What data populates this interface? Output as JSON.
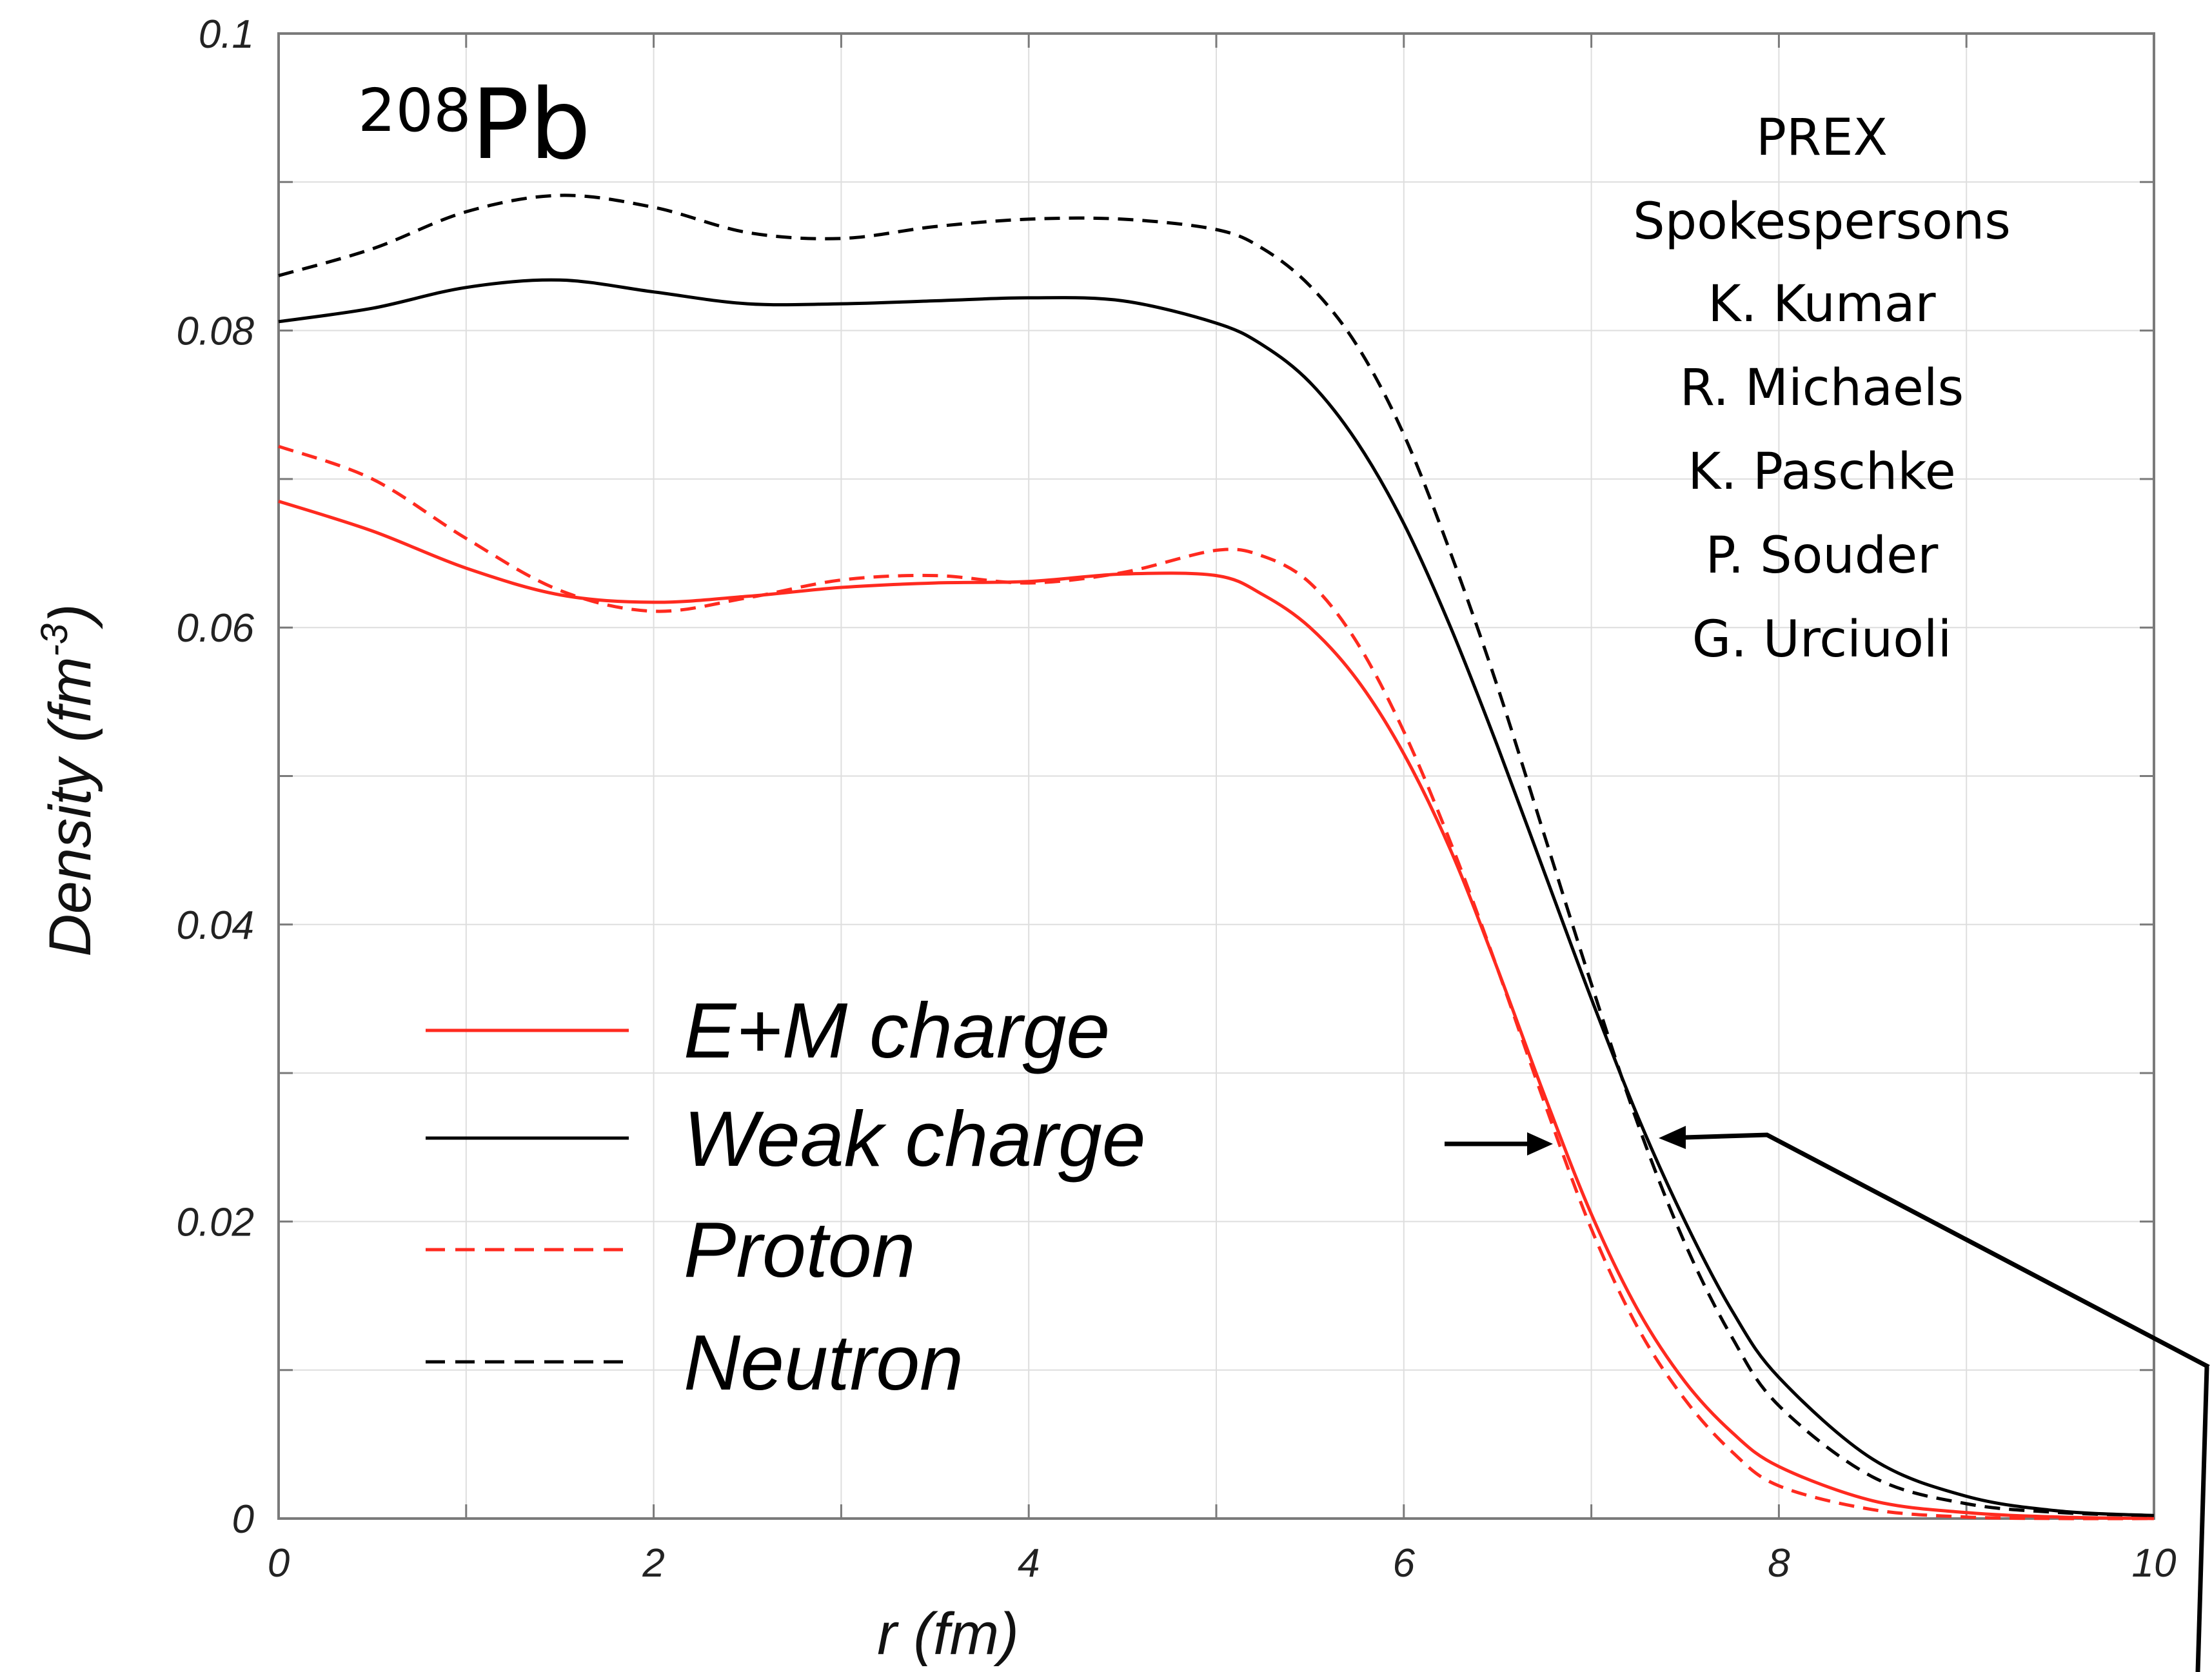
{
  "chart_data": {
    "type": "line",
    "xlabel": "r (fm)",
    "ylabel_main": "Density (fm",
    "ylabel_exp": "-3",
    "ylabel_tail": ")",
    "xlim": [
      0,
      10
    ],
    "ylim": [
      0,
      0.1
    ],
    "x_ticks": [
      "0",
      "2",
      "4",
      "6",
      "8",
      "10"
    ],
    "y_ticks": [
      "0",
      "0.02",
      "0.04",
      "0.06",
      "0.08",
      "0.1"
    ],
    "x_tick_values": [
      0,
      2,
      4,
      6,
      8,
      10
    ],
    "y_tick_values": [
      0,
      0.02,
      0.04,
      0.06,
      0.08,
      0.1
    ],
    "grid": true,
    "legend_position": "lower-left",
    "nucleus_label": {
      "mass": "208",
      "symbol": "Pb"
    },
    "credits": [
      "PREX",
      "Spokespersons",
      "K. Kumar",
      "R. Michaels",
      "K. Paschke",
      "P. Souder",
      "G. Urciuoli"
    ],
    "series": [
      {
        "name": "E+M charge",
        "color": "#ff2a1f",
        "dash": "solid",
        "x": [
          0,
          0.5,
          1,
          1.5,
          2,
          2.5,
          3,
          3.5,
          4,
          4.5,
          5,
          5.25,
          5.5,
          5.75,
          6,
          6.25,
          6.5,
          6.75,
          7,
          7.25,
          7.5,
          7.75,
          8,
          8.5,
          9,
          9.5,
          10
        ],
        "y": [
          0.0685,
          0.0665,
          0.064,
          0.0622,
          0.0617,
          0.0621,
          0.0627,
          0.063,
          0.0631,
          0.0636,
          0.0635,
          0.0622,
          0.06,
          0.0565,
          0.0515,
          0.045,
          0.037,
          0.0285,
          0.0205,
          0.014,
          0.0092,
          0.0058,
          0.0035,
          0.0012,
          0.0004,
          0.0001,
          0.0
        ]
      },
      {
        "name": "Weak charge",
        "color": "#000000",
        "dash": "solid",
        "x": [
          0,
          0.5,
          1,
          1.5,
          2,
          2.5,
          3,
          3.5,
          4,
          4.5,
          5,
          5.25,
          5.5,
          5.75,
          6,
          6.25,
          6.5,
          6.75,
          7,
          7.25,
          7.5,
          7.75,
          8,
          8.5,
          9,
          9.5,
          10
        ],
        "y": [
          0.0806,
          0.0815,
          0.0829,
          0.0834,
          0.0826,
          0.0818,
          0.0818,
          0.082,
          0.0822,
          0.082,
          0.0805,
          0.079,
          0.0765,
          0.0725,
          0.067,
          0.06,
          0.052,
          0.0435,
          0.035,
          0.027,
          0.02,
          0.014,
          0.0095,
          0.004,
          0.0015,
          0.0005,
          0.0002
        ]
      },
      {
        "name": "Proton",
        "color": "#ff2a1f",
        "dash": "dashed",
        "x": [
          0,
          0.5,
          1,
          1.5,
          2,
          2.5,
          3,
          3.5,
          4,
          4.5,
          5,
          5.25,
          5.5,
          5.75,
          6,
          6.25,
          6.5,
          6.75,
          7,
          7.25,
          7.5,
          7.75,
          8,
          8.5,
          9,
          9.5,
          10
        ],
        "y": [
          0.0722,
          0.07,
          0.066,
          0.0625,
          0.0611,
          0.062,
          0.0632,
          0.0635,
          0.063,
          0.0637,
          0.0652,
          0.0648,
          0.063,
          0.059,
          0.053,
          0.0455,
          0.037,
          0.028,
          0.0195,
          0.0128,
          0.008,
          0.0045,
          0.0022,
          0.0006,
          0.0001,
          0.0,
          0.0
        ]
      },
      {
        "name": "Neutron",
        "color": "#000000",
        "dash": "dashed",
        "x": [
          0,
          0.5,
          1,
          1.5,
          2,
          2.5,
          3,
          3.5,
          4,
          4.5,
          5,
          5.25,
          5.5,
          5.75,
          6,
          6.25,
          6.5,
          6.75,
          7,
          7.25,
          7.5,
          7.75,
          8,
          8.5,
          9,
          9.5,
          10
        ],
        "y": [
          0.0837,
          0.0855,
          0.088,
          0.0891,
          0.0883,
          0.0866,
          0.0862,
          0.087,
          0.0875,
          0.0875,
          0.0868,
          0.0855,
          0.083,
          0.079,
          0.073,
          0.065,
          0.056,
          0.046,
          0.036,
          0.0265,
          0.0185,
          0.0122,
          0.0076,
          0.0028,
          0.001,
          0.0004,
          0.0002
        ]
      }
    ]
  }
}
